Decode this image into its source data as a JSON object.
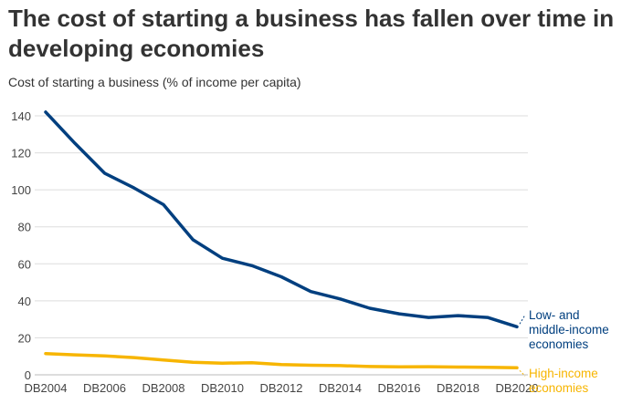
{
  "chart_data": {
    "type": "line",
    "title": "The cost of starting a business has fallen over time in developing economies",
    "subtitle": "Cost of starting a business (% of income per capita)",
    "x": [
      "DB2004",
      "DB2005",
      "DB2006",
      "DB2007",
      "DB2008",
      "DB2009",
      "DB2010",
      "DB2011",
      "DB2012",
      "DB2013",
      "DB2014",
      "DB2015",
      "DB2016",
      "DB2017",
      "DB2018",
      "DB2019",
      "DB2020"
    ],
    "x_tick_labels": [
      "DB2004",
      "DB2006",
      "DB2008",
      "DB2010",
      "DB2012",
      "DB2014",
      "DB2016",
      "DB2018",
      "DB2020"
    ],
    "y_ticks": [
      0,
      20,
      40,
      60,
      80,
      100,
      120,
      140
    ],
    "ylim": [
      0,
      140
    ],
    "grid": true,
    "series": [
      {
        "name": "Low- and middle-income economies",
        "label_lines": [
          "Low- and",
          "middle-income",
          "economies"
        ],
        "color": "#003f7f",
        "values": [
          142,
          125,
          109,
          101,
          92,
          73,
          63,
          59,
          53,
          45,
          41,
          36,
          33,
          31,
          32,
          31,
          26
        ]
      },
      {
        "name": "High-income economies",
        "label_lines": [
          "High-income",
          "economies"
        ],
        "color": "#f7b500",
        "values": [
          11.5,
          10.8,
          10.2,
          9.3,
          8,
          6.8,
          6.3,
          6.5,
          5.5,
          5.2,
          5,
          4.5,
          4.3,
          4.4,
          4.2,
          4.1,
          3.8
        ]
      }
    ]
  }
}
